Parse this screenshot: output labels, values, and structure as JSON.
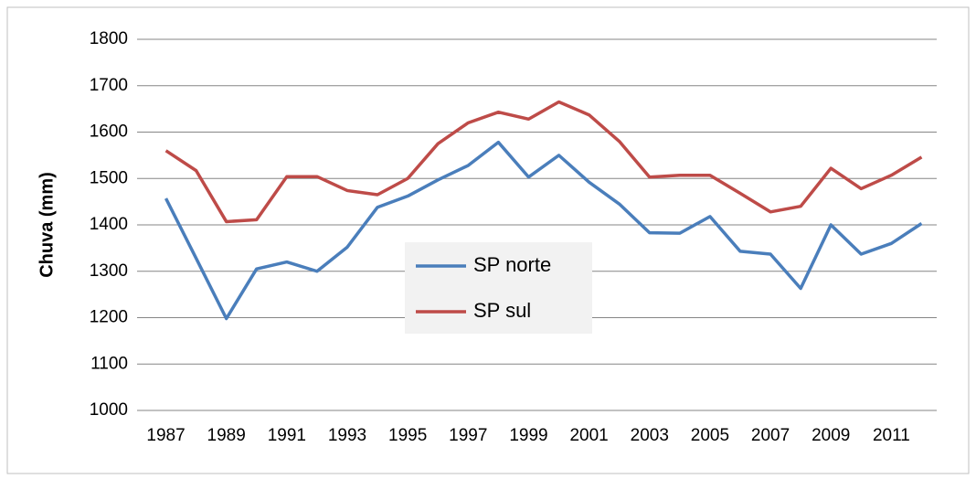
{
  "chart_data": {
    "type": "line",
    "y_label": "Chuva (mm)",
    "categories": [
      "1987",
      null,
      "1989",
      null,
      "1991",
      null,
      "1993",
      null,
      "1995",
      null,
      "1997",
      null,
      "1999",
      null,
      "2001",
      null,
      "2003",
      null,
      "2005",
      null,
      "2007",
      null,
      "2009",
      null,
      "2011",
      null
    ],
    "series": [
      {
        "name": "SP norte",
        "color": "#4a7ebb",
        "values": [
          1457,
          1328,
          1198,
          1305,
          1320,
          1300,
          1352,
          1438,
          1462,
          1497,
          1528,
          1578,
          1503,
          1550,
          1492,
          1445,
          1383,
          1382,
          1418,
          1343,
          1337,
          1263,
          1400,
          1337,
          1360,
          1403
        ]
      },
      {
        "name": "SP sul",
        "color": "#be4b48",
        "values": [
          1560,
          1517,
          1407,
          1411,
          1504,
          1504,
          1474,
          1465,
          1500,
          1575,
          1620,
          1643,
          1628,
          1665,
          1637,
          1580,
          1503,
          1507,
          1507,
          1468,
          1428,
          1440,
          1522,
          1478,
          1507,
          1546
        ]
      }
    ],
    "ylim": [
      1000,
      1800
    ],
    "yticks": [
      1000,
      1100,
      1200,
      1300,
      1400,
      1500,
      1600,
      1700,
      1800
    ],
    "grid": true
  }
}
